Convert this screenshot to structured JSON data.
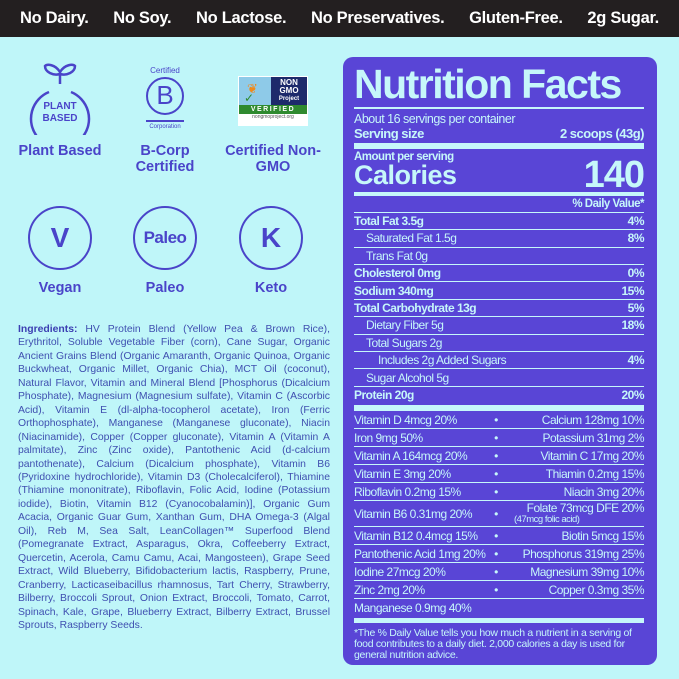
{
  "banner": [
    "No Dairy.",
    "No Soy.",
    "No Lactose.",
    "No Preservatives.",
    "Gluten-Free.",
    "2g Sugar."
  ],
  "badges": {
    "plant": {
      "icon_text": "PLANT BASED",
      "label": "Plant Based"
    },
    "bcorp": {
      "top": "Certified",
      "letter": "B",
      "bottom": "Corporation",
      "label": "B-Corp Certified"
    },
    "nongmo": {
      "top1": "NON",
      "top2": "GMO",
      "top3": "Project",
      "verified": "VERIFIED",
      "url": "nongmoproject.org",
      "label": "Certified Non-GMO"
    },
    "vegan": {
      "icon_text": "V",
      "label": "Vegan"
    },
    "paleo": {
      "icon_text": "Paleo",
      "label": "Paleo"
    },
    "keto": {
      "icon_text": "K",
      "label": "Keto"
    }
  },
  "ingredients": {
    "heading": "Ingredients:",
    "text": "HV Protein Blend (Yellow Pea & Brown Rice), Erythritol, Soluble Vegetable Fiber (corn), Cane Sugar, Organic Ancient Grains Blend (Organic Amaranth, Organic Quinoa, Organic Buckwheat, Organic Millet, Organic Chia), MCT Oil (coconut), Natural Flavor, Vitamin and Mineral Blend [Phosphorus (Dicalcium Phosphate), Magnesium (Magnesium sulfate), Vitamin C (Ascorbic Acid), Vitamin E (dl-alpha-tocopherol acetate), Iron (Ferric Orthophosphate), Manganese (Manganese gluconate), Niacin (Niacinamide), Copper (Copper gluconate), Vitamin A (Vitamin A palmitate), Zinc (Zinc oxide), Pantothenic Acid (d-calcium pantothenate), Calcium (Dicalcium phosphate), Vitamin B6 (Pyridoxine hydrochloride), Vitamin D3 (Cholecalciferol), Thiamine (Thiamine mononitrate), Riboflavin, Folic Acid, Iodine (Potassium iodide), Biotin, Vitamin B12 (Cyanocobalamin)], Organic Gum Acacia, Organic Guar Gum, Xanthan Gum, DHA Omega-3 (Algal Oil), Reb M, Sea Salt, LeanCollagen™ Superfood Blend (Pomegranate Extract, Asparagus, Okra, Coffeeberry Extract, Quercetin, Acerola, Camu Camu, Acai, Mangosteen), Grape Seed Extract, Wild Blueberry, Bifidobacterium lactis, Raspberry, Prune, Cranberry, Lacticaseibacillus rhamnosus, Tart Cherry, Strawberry, Bilberry, Broccoli Sprout, Onion Extract, Broccoli, Tomato, Carrot, Spinach, Kale, Grape, Blueberry Extract, Bilberry Extract, Brussel Sprouts, Raspberry Seeds."
  },
  "nutrition": {
    "title": "Nutrition Facts",
    "servings": "About 16 servings per container",
    "serving_size_label": "Serving size",
    "serving_size": "2 scoops (43g)",
    "amount_label": "Amount per serving",
    "calories_label": "Calories",
    "calories": "140",
    "dv_header": "% Daily Value*",
    "rows": [
      {
        "label": "Total Fat 3.5g",
        "dv": "4%",
        "bold": true,
        "indent": 0
      },
      {
        "label": "Saturated Fat 1.5g",
        "dv": "8%",
        "indent": 1
      },
      {
        "label": "Trans Fat 0g",
        "dv": "",
        "indent": 1
      },
      {
        "label": "Cholesterol 0mg",
        "dv": "0%",
        "bold": true,
        "indent": 0
      },
      {
        "label": "Sodium 340mg",
        "dv": "15%",
        "bold": true,
        "indent": 0
      },
      {
        "label": "Total Carbohydrate 13g",
        "dv": "5%",
        "bold": true,
        "indent": 0
      },
      {
        "label": "Dietary Fiber 5g",
        "dv": "18%",
        "indent": 1
      },
      {
        "label": "Total Sugars 2g",
        "dv": "",
        "indent": 1
      },
      {
        "label": "Includes 2g Added Sugars",
        "dv": "4%",
        "indent": 2
      },
      {
        "label": "Sugar Alcohol 5g",
        "dv": "",
        "indent": 1
      },
      {
        "label": "Protein 20g",
        "dv": "20%",
        "bold": true,
        "indent": 0
      }
    ],
    "vitamins": [
      {
        "left": "Vitamin D 4mcg 20%",
        "right": "Calcium 128mg 10%"
      },
      {
        "left": "Iron 9mg 50%",
        "right": "Potassium 31mg 2%"
      },
      {
        "left": "Vitamin A 164mcg 20%",
        "right": "Vitamin C 17mg 20%"
      },
      {
        "left": "Vitamin E 3mg 20%",
        "right": "Thiamin 0.2mg 15%"
      },
      {
        "left": "Riboflavin 0.2mg 15%",
        "right": "Niacin 3mg 20%"
      },
      {
        "left": "Vitamin B6 0.31mg 20%",
        "right": "Folate 73mcg DFE 20%",
        "right_sub": "(47mcg folic acid)"
      },
      {
        "left": "Vitamin B12 0.4mcg 15%",
        "right": "Biotin 5mcg 15%"
      },
      {
        "left": "Pantothenic Acid 1mg 20%",
        "right": "Phosphorus 319mg 25%"
      },
      {
        "left": "Iodine 27mcg 20%",
        "right": "Magnesium 39mg 10%"
      },
      {
        "left": "Zinc 2mg 20%",
        "right": "Copper 0.3mg 35%"
      },
      {
        "left": "Manganese 0.9mg 40%",
        "right": ""
      }
    ],
    "footnote": "*The % Daily Value tells you how much a nutrient in a serving of food contributes to a daily diet. 2,000 calories a day is used for general nutrition advice."
  },
  "colors": {
    "background": "#bff6f9",
    "banner": "#231f20",
    "panel": "#5945d6",
    "panel_text": "#c6f7fa",
    "icon": "#4a44c9"
  }
}
